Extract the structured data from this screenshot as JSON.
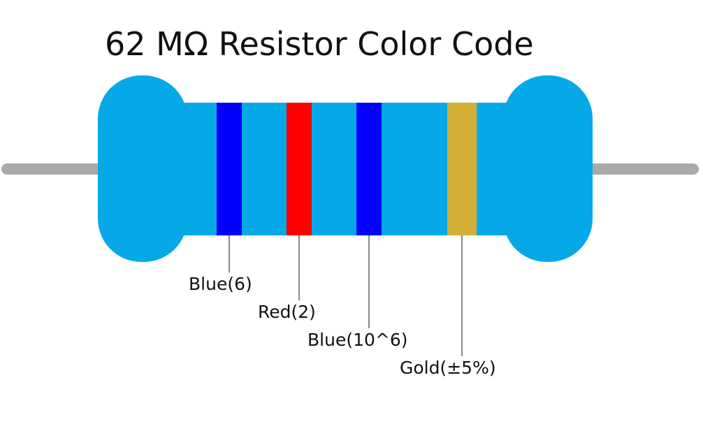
{
  "title": "62 MΩ Resistor Color Code",
  "bands": [
    {
      "label": "Blue(6)",
      "color": "#0000ff"
    },
    {
      "label": "Red(2)",
      "color": "#ff0000"
    },
    {
      "label": "Blue(10^6)",
      "color": "#0000ff"
    },
    {
      "label": "Gold(±5%)",
      "color": "#d4af37"
    }
  ]
}
